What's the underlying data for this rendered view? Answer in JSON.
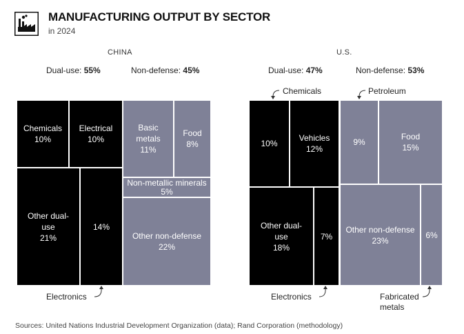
{
  "header": {
    "title": "MANUFACTURING OUTPUT BY SECTOR",
    "subtitle": "in 2024",
    "logo_icon": "factory-icon"
  },
  "colors": {
    "dual_use": "#000000",
    "non_defense": "#7f8197"
  },
  "chart_data": [
    {
      "type": "treemap",
      "country": "CHINA",
      "groups": [
        {
          "label": "Dual-use:",
          "value": "55%",
          "sectors": [
            {
              "name": "Chemicals",
              "value": 10
            },
            {
              "name": "Electrical",
              "value": 10
            },
            {
              "name": "Other dual-use",
              "value": 21
            },
            {
              "name": "",
              "value": 14,
              "callout": "Electronics"
            }
          ]
        },
        {
          "label": "Non-defense:",
          "value": "45%",
          "sectors": [
            {
              "name": "Basic metals",
              "value": 11
            },
            {
              "name": "Food",
              "value": 8
            },
            {
              "name": "Non-metallic minerals",
              "value": 5
            },
            {
              "name": "Other non-defense",
              "value": 22
            }
          ]
        }
      ]
    },
    {
      "type": "treemap",
      "country": "U.S.",
      "groups": [
        {
          "label": "Dual-use:",
          "value": "47%",
          "sectors": [
            {
              "name": "",
              "value": 10,
              "callout": "Chemicals"
            },
            {
              "name": "Vehicles",
              "value": 12
            },
            {
              "name": "Other dual-use",
              "value": 18
            },
            {
              "name": "",
              "value": 7,
              "callout": "Electronics"
            }
          ]
        },
        {
          "label": "Non-defense:",
          "value": "53%",
          "sectors": [
            {
              "name": "",
              "value": 9,
              "callout": "Petroleum"
            },
            {
              "name": "Food",
              "value": 15
            },
            {
              "name": "Other non-defense",
              "value": 23
            },
            {
              "name": "",
              "value": 6,
              "callout": "Fabricated metals"
            }
          ]
        }
      ]
    }
  ],
  "source": "Sources: United Nations Industrial Development Organization (data); Rand Corporation (methodology)"
}
